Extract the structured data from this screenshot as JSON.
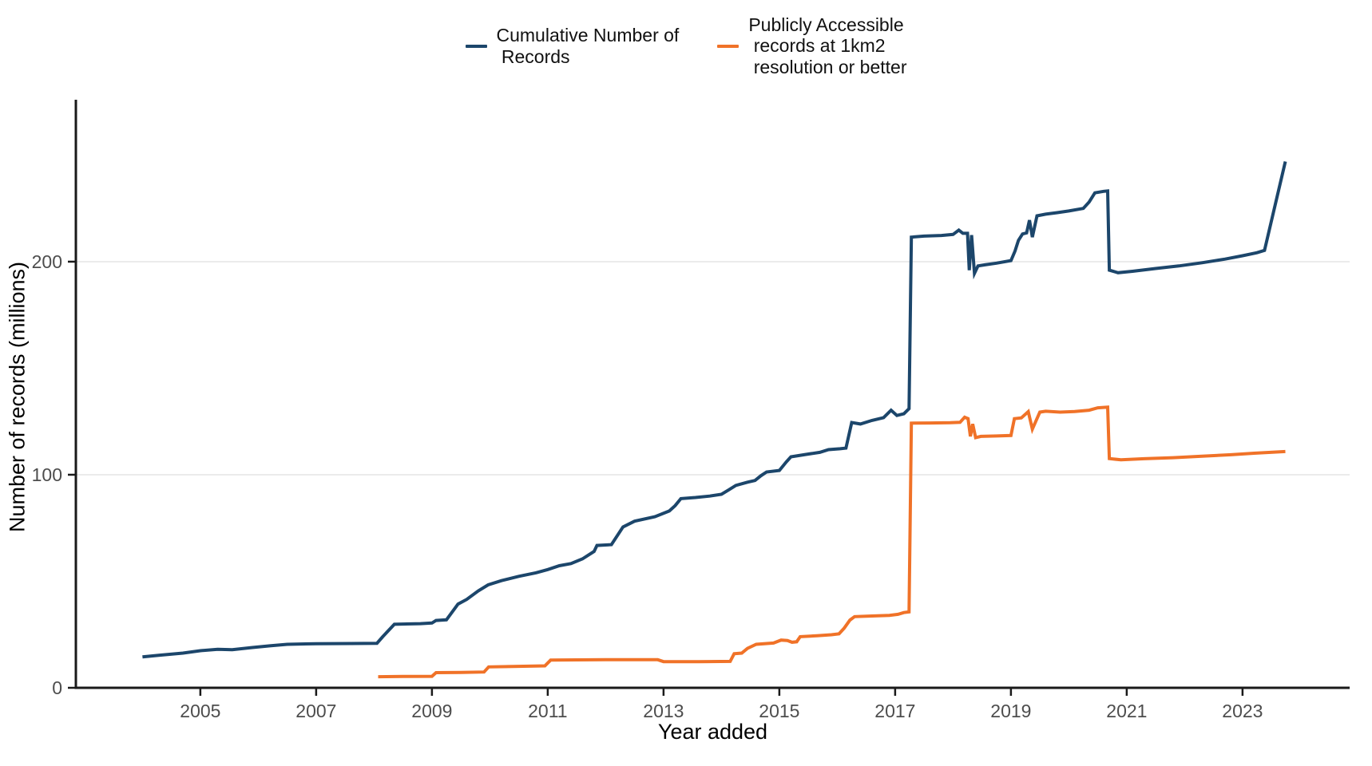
{
  "figure": {
    "x_axis_title": "Year added",
    "y_axis_title": "Number of records (millions)"
  },
  "legend": {
    "entries": [
      {
        "series": "cumulative",
        "label": "Cumulative Number of\n Records",
        "color": "#1C466B"
      },
      {
        "series": "public-1km2",
        "label": "Publicly Accessible\n records at 1km2\n resolution or better",
        "color": "#F07228"
      }
    ]
  },
  "chart_data": {
    "type": "line",
    "title": "",
    "xlabel": "Year added",
    "ylabel": "Number of records (millions)",
    "xlim": [
      2002.85,
      2024.85
    ],
    "ylim": [
      0,
      276
    ],
    "x_ticks": [
      2005,
      2007,
      2009,
      2011,
      2013,
      2015,
      2017,
      2019,
      2021,
      2023
    ],
    "y_ticks": [
      0,
      100,
      200
    ],
    "grid": "horizontal-major-only",
    "gridline_color": "#EBEBEB",
    "axis_color": "#1A1A1A",
    "tick_label_color": "#4D4D4D",
    "legend_position": "top-center",
    "series": [
      {
        "name": "Cumulative Number of Records",
        "color": "#1C466B",
        "points": [
          [
            2004.0,
            14.5
          ],
          [
            2004.3,
            15.3
          ],
          [
            2004.7,
            16.3
          ],
          [
            2005.0,
            17.4
          ],
          [
            2005.3,
            18.1
          ],
          [
            2005.55,
            17.9
          ],
          [
            2005.9,
            18.9
          ],
          [
            2006.2,
            19.7
          ],
          [
            2006.5,
            20.4
          ],
          [
            2007.0,
            20.7
          ],
          [
            2007.6,
            20.8
          ],
          [
            2008.05,
            20.9
          ],
          [
            2008.15,
            24.0
          ],
          [
            2008.35,
            29.8
          ],
          [
            2008.8,
            30.1
          ],
          [
            2009.0,
            30.4
          ],
          [
            2009.07,
            31.6
          ],
          [
            2009.25,
            31.9
          ],
          [
            2009.45,
            39.3
          ],
          [
            2009.6,
            41.5
          ],
          [
            2009.8,
            45.5
          ],
          [
            2009.97,
            48.3
          ],
          [
            2010.2,
            50.3
          ],
          [
            2010.5,
            52.3
          ],
          [
            2010.8,
            54.0
          ],
          [
            2011.0,
            55.5
          ],
          [
            2011.2,
            57.3
          ],
          [
            2011.4,
            58.3
          ],
          [
            2011.6,
            60.5
          ],
          [
            2011.8,
            64.0
          ],
          [
            2011.85,
            66.8
          ],
          [
            2012.1,
            67.2
          ],
          [
            2012.3,
            75.5
          ],
          [
            2012.5,
            78.2
          ],
          [
            2012.85,
            80.3
          ],
          [
            2013.1,
            83.0
          ],
          [
            2013.2,
            85.5
          ],
          [
            2013.3,
            88.8
          ],
          [
            2013.55,
            89.3
          ],
          [
            2013.8,
            90.0
          ],
          [
            2014.0,
            90.8
          ],
          [
            2014.12,
            92.8
          ],
          [
            2014.25,
            95.0
          ],
          [
            2014.45,
            96.5
          ],
          [
            2014.58,
            97.3
          ],
          [
            2014.68,
            99.5
          ],
          [
            2014.78,
            101.3
          ],
          [
            2015.0,
            102.0
          ],
          [
            2015.12,
            106.0
          ],
          [
            2015.2,
            108.4
          ],
          [
            2015.45,
            109.5
          ],
          [
            2015.7,
            110.5
          ],
          [
            2015.85,
            111.8
          ],
          [
            2016.05,
            112.2
          ],
          [
            2016.15,
            112.5
          ],
          [
            2016.25,
            124.5
          ],
          [
            2016.4,
            123.8
          ],
          [
            2016.6,
            125.5
          ],
          [
            2016.8,
            126.8
          ],
          [
            2016.93,
            130.3
          ],
          [
            2017.03,
            127.8
          ],
          [
            2017.15,
            128.6
          ],
          [
            2017.24,
            131.0
          ],
          [
            2017.28,
            211.5
          ],
          [
            2017.5,
            212.0
          ],
          [
            2017.8,
            212.3
          ],
          [
            2018.0,
            212.8
          ],
          [
            2018.1,
            214.8
          ],
          [
            2018.17,
            213.3
          ],
          [
            2018.25,
            213.3
          ],
          [
            2018.28,
            196.0
          ],
          [
            2018.32,
            212.5
          ],
          [
            2018.37,
            194.5
          ],
          [
            2018.43,
            198.0
          ],
          [
            2018.55,
            198.5
          ],
          [
            2018.75,
            199.3
          ],
          [
            2019.0,
            200.5
          ],
          [
            2019.07,
            205.0
          ],
          [
            2019.13,
            210.0
          ],
          [
            2019.2,
            213.0
          ],
          [
            2019.27,
            213.5
          ],
          [
            2019.32,
            219.5
          ],
          [
            2019.37,
            211.5
          ],
          [
            2019.45,
            221.5
          ],
          [
            2019.6,
            222.3
          ],
          [
            2019.8,
            223.0
          ],
          [
            2020.0,
            223.8
          ],
          [
            2020.25,
            225.0
          ],
          [
            2020.35,
            228.0
          ],
          [
            2020.45,
            232.3
          ],
          [
            2020.6,
            233.0
          ],
          [
            2020.67,
            233.2
          ],
          [
            2020.7,
            196.0
          ],
          [
            2020.85,
            194.8
          ],
          [
            2021.1,
            195.5
          ],
          [
            2021.5,
            196.8
          ],
          [
            2021.9,
            198.0
          ],
          [
            2022.3,
            199.5
          ],
          [
            2022.7,
            201.2
          ],
          [
            2023.0,
            202.8
          ],
          [
            2023.25,
            204.2
          ],
          [
            2023.38,
            205.3
          ],
          [
            2023.74,
            247.0
          ]
        ]
      },
      {
        "name": "Publicly Accessible records at 1km2 resolution or better",
        "color": "#F07228",
        "points": [
          [
            2008.07,
            5.2
          ],
          [
            2008.5,
            5.3
          ],
          [
            2009.0,
            5.4
          ],
          [
            2009.07,
            7.1
          ],
          [
            2009.5,
            7.2
          ],
          [
            2009.9,
            7.4
          ],
          [
            2009.98,
            9.8
          ],
          [
            2010.4,
            10.0
          ],
          [
            2010.95,
            10.3
          ],
          [
            2011.05,
            13.0
          ],
          [
            2011.5,
            13.1
          ],
          [
            2012.0,
            13.2
          ],
          [
            2012.9,
            13.2
          ],
          [
            2013.0,
            12.3
          ],
          [
            2013.6,
            12.3
          ],
          [
            2014.15,
            12.4
          ],
          [
            2014.22,
            16.0
          ],
          [
            2014.35,
            16.3
          ],
          [
            2014.45,
            18.5
          ],
          [
            2014.6,
            20.4
          ],
          [
            2014.9,
            21.0
          ],
          [
            2015.03,
            22.4
          ],
          [
            2015.14,
            22.2
          ],
          [
            2015.22,
            21.4
          ],
          [
            2015.3,
            21.6
          ],
          [
            2015.36,
            24.0
          ],
          [
            2015.65,
            24.4
          ],
          [
            2015.9,
            24.9
          ],
          [
            2016.03,
            25.3
          ],
          [
            2016.12,
            28.0
          ],
          [
            2016.22,
            31.8
          ],
          [
            2016.3,
            33.4
          ],
          [
            2016.6,
            33.7
          ],
          [
            2016.9,
            34.0
          ],
          [
            2017.05,
            34.5
          ],
          [
            2017.15,
            35.3
          ],
          [
            2017.24,
            35.6
          ],
          [
            2017.28,
            124.2
          ],
          [
            2017.6,
            124.3
          ],
          [
            2017.95,
            124.4
          ],
          [
            2018.12,
            124.6
          ],
          [
            2018.2,
            127.0
          ],
          [
            2018.26,
            126.3
          ],
          [
            2018.3,
            118.0
          ],
          [
            2018.34,
            123.8
          ],
          [
            2018.39,
            117.4
          ],
          [
            2018.48,
            118.0
          ],
          [
            2018.75,
            118.2
          ],
          [
            2019.0,
            118.4
          ],
          [
            2019.06,
            126.3
          ],
          [
            2019.18,
            126.7
          ],
          [
            2019.3,
            129.6
          ],
          [
            2019.37,
            121.4
          ],
          [
            2019.5,
            129.4
          ],
          [
            2019.6,
            129.8
          ],
          [
            2019.85,
            129.4
          ],
          [
            2020.1,
            129.7
          ],
          [
            2020.35,
            130.3
          ],
          [
            2020.5,
            131.4
          ],
          [
            2020.67,
            131.7
          ],
          [
            2020.7,
            107.6
          ],
          [
            2020.9,
            107.0
          ],
          [
            2021.3,
            107.5
          ],
          [
            2021.8,
            108.0
          ],
          [
            2022.3,
            108.7
          ],
          [
            2022.8,
            109.4
          ],
          [
            2023.2,
            110.1
          ],
          [
            2023.74,
            110.9
          ]
        ]
      }
    ]
  }
}
